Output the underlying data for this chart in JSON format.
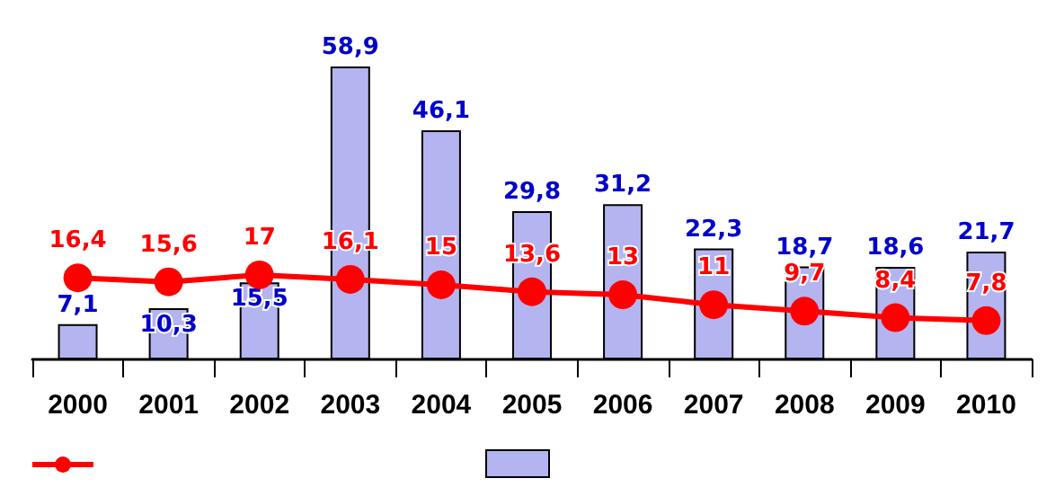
{
  "chart_data": {
    "type": "bar",
    "categories": [
      "2000",
      "2001",
      "2002",
      "2003",
      "2004",
      "2005",
      "2006",
      "2007",
      "2008",
      "2009",
      "2010"
    ],
    "series": [
      {
        "color": "#b4b4f0",
        "values": [
          7.1,
          10.3,
          15.5,
          58.9,
          46.1,
          29.8,
          31.2,
          22.3,
          18.7,
          18.6,
          21.7
        ],
        "value_labels": [
          "7,1",
          "10,3",
          "15,5",
          "58,9",
          "46,1",
          "29,8",
          "31,2",
          "22,3",
          "18,7",
          "18,6",
          "21,7"
        ]
      },
      {
        "type": "line",
        "color": "#ff0000",
        "marker": "circle",
        "values": [
          16.4,
          15.6,
          17,
          16.1,
          15,
          13.6,
          13,
          11,
          9.7,
          8.4,
          7.8
        ],
        "value_labels": [
          "16,4",
          "15,6",
          "17",
          "16,1",
          "15",
          "13,6",
          "13",
          "11",
          "9,7",
          "8,4",
          "7,8"
        ]
      }
    ],
    "grid": false
  }
}
